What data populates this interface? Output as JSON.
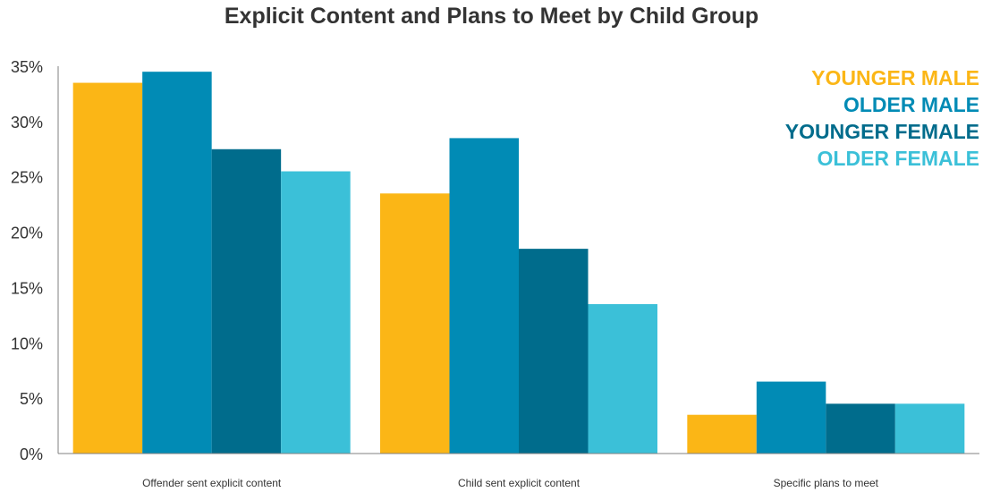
{
  "chart_data": {
    "type": "bar",
    "title": "Explicit Content and Plans to Meet by Child Group",
    "categories": [
      "Offender sent explicit content",
      "Child sent explicit content",
      "Specific plans to meet"
    ],
    "series": [
      {
        "name": "YOUNGER MALE",
        "color": "#FBB616",
        "values": [
          33.5,
          23.5,
          3.5
        ]
      },
      {
        "name": "OLDER MALE",
        "color": "#018BB5",
        "values": [
          34.5,
          28.5,
          6.5
        ]
      },
      {
        "name": "YOUNGER FEMALE",
        "color": "#006C8C",
        "values": [
          27.5,
          18.5,
          4.5
        ]
      },
      {
        "name": "OLDER FEMALE",
        "color": "#3BC0D8",
        "values": [
          25.5,
          13.5,
          4.5
        ]
      }
    ],
    "yticks": [
      "0%",
      "5%",
      "10%",
      "15%",
      "20%",
      "25%",
      "30%",
      "35%"
    ],
    "ylim": [
      0,
      35
    ],
    "xlabel": "",
    "ylabel": "",
    "grid": false,
    "legend_position": "top-right"
  }
}
